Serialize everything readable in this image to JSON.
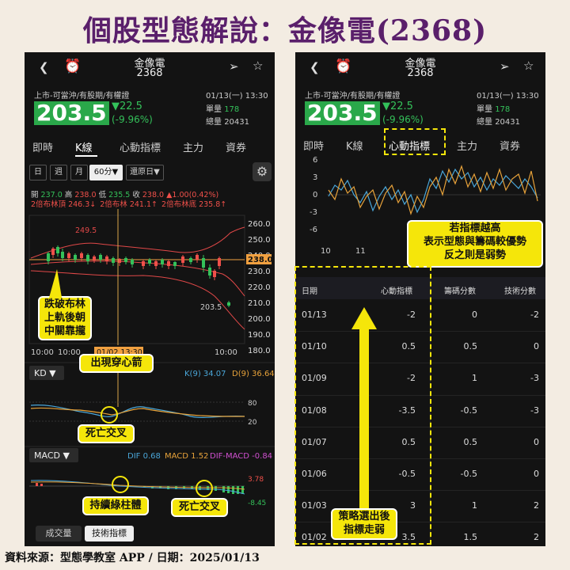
{
  "title": "個股型態解說：金像電(2368)",
  "footer": "資料來源：型態學教室 APP / 日期：2025/01/13",
  "stock": {
    "name": "金像電",
    "code": "2368",
    "tags": "上市-可當沖/有股期/有權證",
    "price": "203.5",
    "change": "▼22.5",
    "change_pct": "(-9.96%)",
    "datetime": "01/13(一) 13:30",
    "volume_label": "單量",
    "volume": "178",
    "total_label": "總量",
    "total": "20431"
  },
  "tabs": [
    "即時",
    "K線",
    "心動指標",
    "主力",
    "資券"
  ],
  "left": {
    "period_chips": [
      "日",
      "週",
      "月",
      "60分▼",
      "還原日▼"
    ],
    "ohlc": {
      "open_label": "開",
      "open": "237.0",
      "high_label": "高",
      "high": "238.0",
      "low_label": "低",
      "low": "235.5",
      "close_label": "收",
      "close": "238.0",
      "chg": "▲1.00(0.42%)"
    },
    "boll": {
      "top": "2倍布林頂 246.3↓",
      "mid": "2倍布林 241.1↑",
      "bottom": "2倍布林底 235.8↑"
    },
    "price_axis": [
      "260.0",
      "250.0",
      "240.0",
      "230.0",
      "220.0",
      "210.0",
      "200.0",
      "190.0",
      "180.0"
    ],
    "current_tag": "238.0",
    "high_mark": "249.5",
    "low_mark": "203.5",
    "time_labels": [
      "10:00",
      "10:00",
      "10:00"
    ],
    "crosshair_time": "01/02 13:30",
    "kd": {
      "label": "KD ▼",
      "k": "K(9) 34.07",
      "d": "D(9) 36.64",
      "levels": [
        "80",
        "20"
      ]
    },
    "macd": {
      "label": "MACD ▼",
      "dif": "DIF 0.68",
      "macd": "MACD 1.52",
      "difmacd": "DIF-MACD -0.84",
      "max": "3.78",
      "min": "-8.45"
    },
    "bottom_tabs": [
      "成交量",
      "技術指標"
    ],
    "callouts": {
      "bollinger": "跌破布林\n上軌後朝\n中關靠攏",
      "arrow": "出現穿心箭",
      "kd_death": "死亡交叉",
      "green_bars": "持續綠柱體",
      "macd_death": "死亡交叉"
    }
  },
  "right": {
    "indicator_axis": [
      "6",
      "3",
      "0",
      "-3",
      "-6"
    ],
    "indicator_dates": [
      "10",
      "11"
    ],
    "callout": "若指標越高\n表示型態與籌碼較優勢\n反之則是弱勢",
    "callout_select": "策略選出後\n指標走弱",
    "table": {
      "headers": [
        "日期",
        "心動指標",
        "籌碼分數",
        "技術分數"
      ],
      "rows": [
        [
          "01/13",
          "-2",
          "0",
          "-2"
        ],
        [
          "01/10",
          "0.5",
          "0.5",
          "0"
        ],
        [
          "01/09",
          "-2",
          "1",
          "-3"
        ],
        [
          "01/08",
          "-3.5",
          "-0.5",
          "-3"
        ],
        [
          "01/07",
          "0.5",
          "0.5",
          "0"
        ],
        [
          "01/06",
          "-0.5",
          "-0.5",
          "0"
        ],
        [
          "01/03",
          "3",
          "1",
          "2"
        ],
        [
          "01/02",
          "3.5",
          "1.5",
          "2"
        ]
      ]
    }
  },
  "colors": {
    "title": "#5a1f6b",
    "up": "#f0504a",
    "down": "#34c15a",
    "highlight": "#f5e60a",
    "indicator_blue": "#4aa6d8",
    "indicator_orange": "#e7a23a"
  },
  "chart_data": [
    {
      "type": "line",
      "title": "心動指標",
      "x": [
        "10",
        "11"
      ],
      "yticks": [
        6,
        3,
        0,
        -3,
        -6
      ],
      "ylim": [
        -6,
        6
      ],
      "series": []
    }
  ]
}
